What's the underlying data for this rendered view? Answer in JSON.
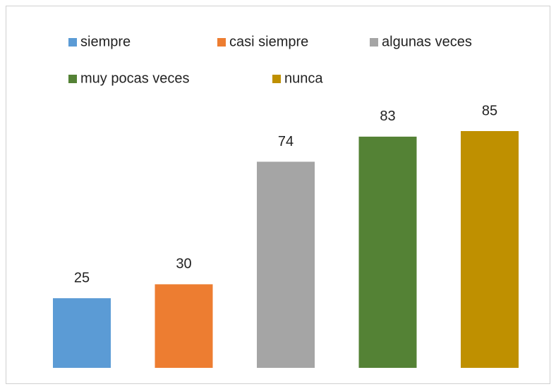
{
  "chart_data": {
    "type": "bar",
    "categories": [
      null
    ],
    "series": [
      {
        "name": "siempre",
        "color": "#5b9bd5",
        "values": [
          25
        ]
      },
      {
        "name": "casi siempre",
        "color": "#ed7d31",
        "values": [
          30
        ]
      },
      {
        "name": "algunas veces",
        "color": "#a5a5a5",
        "values": [
          74
        ]
      },
      {
        "name": "muy pocas veces",
        "color": "#548235",
        "values": [
          83
        ]
      },
      {
        "name": "nunca",
        "color": "#bf9000",
        "values": [
          85
        ]
      }
    ],
    "legend": "top"
  }
}
